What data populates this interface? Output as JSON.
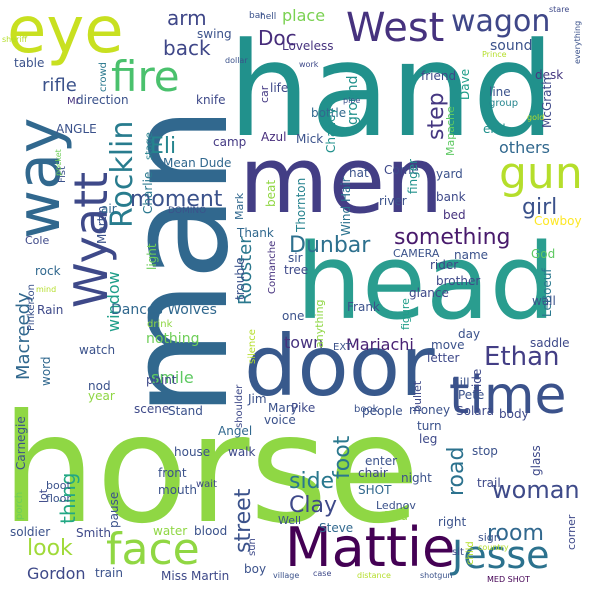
{
  "words": [
    {
      "text": "horse",
      "color": "#8fd744"
    },
    {
      "text": "man",
      "color": "#31688e"
    },
    {
      "text": "hand",
      "color": "#21918c"
    },
    {
      "text": "head",
      "color": "#2a9d8f"
    },
    {
      "text": "men",
      "color": "#433e85"
    },
    {
      "text": "door",
      "color": "#38598c"
    },
    {
      "text": "way",
      "color": "#31688e"
    },
    {
      "text": "eye",
      "color": "#c8e020"
    },
    {
      "text": "Mattie",
      "color": "#440154"
    },
    {
      "text": "time",
      "color": "#3b528b"
    },
    {
      "text": "Wyatt",
      "color": "#3e4989"
    },
    {
      "text": "West",
      "color": "#46327e"
    },
    {
      "text": "gun",
      "color": "#b5de2b"
    },
    {
      "text": "face",
      "color": "#90d743"
    },
    {
      "text": "fire",
      "color": "#4ac16d"
    },
    {
      "text": "Jesse",
      "color": "#2c728e"
    },
    {
      "text": "Rocklin",
      "color": "#287c8e"
    },
    {
      "text": "wagon",
      "color": "#3f4788"
    },
    {
      "text": "Ethan",
      "color": "#433e85"
    },
    {
      "text": "woman",
      "color": "#3e4a89"
    },
    {
      "text": "Dunbar",
      "color": "#2d708e"
    },
    {
      "text": "moment",
      "color": "#3b528b"
    },
    {
      "text": "something",
      "color": "#481a6c"
    },
    {
      "text": "road",
      "color": "#2c728e"
    },
    {
      "text": "room",
      "color": "#31688e"
    },
    {
      "text": "street",
      "color": "#3b528b"
    },
    {
      "text": "Eli",
      "color": "#25858e"
    },
    {
      "text": "side",
      "color": "#2a788e"
    },
    {
      "text": "Clay",
      "color": "#3e4989"
    },
    {
      "text": "girl",
      "color": "#3b528b"
    },
    {
      "text": "foot",
      "color": "#2a788e"
    },
    {
      "text": "step",
      "color": "#453781"
    },
    {
      "text": "look",
      "color": "#a0da39"
    },
    {
      "text": "back",
      "color": "#3f4788"
    },
    {
      "text": "Doc",
      "color": "#472d7b"
    },
    {
      "text": "arm",
      "color": "#3f4788"
    },
    {
      "text": "thing",
      "color": "#22a884"
    },
    {
      "text": "Rooster",
      "color": "#2a788e"
    },
    {
      "text": "window",
      "color": "#1f9e89"
    },
    {
      "text": "rifle",
      "color": "#3b528b"
    },
    {
      "text": "Macreedy",
      "color": "#31688e"
    },
    {
      "text": "Mariachi",
      "color": "#482173"
    },
    {
      "text": "Gordon",
      "color": "#3e4989"
    },
    {
      "text": "town",
      "color": "#46327e"
    },
    {
      "text": "others",
      "color": "#31688e"
    },
    {
      "text": "place",
      "color": "#7ad151"
    },
    {
      "text": "smile",
      "color": "#5ec962"
    },
    {
      "text": "sound",
      "color": "#3b528b"
    },
    {
      "text": "ground",
      "color": "#21918c"
    },
    {
      "text": "Dances Wolves",
      "color": "#31688e"
    },
    {
      "text": "nothing",
      "color": "#6ece58"
    },
    {
      "text": "Cowboy",
      "color": "#fde725"
    },
    {
      "text": "SHOT",
      "color": "#31688e"
    },
    {
      "text": "swing",
      "color": "#3b528b"
    },
    {
      "text": "table",
      "color": "#3b528b"
    },
    {
      "text": "Loveless",
      "color": "#46327e"
    },
    {
      "text": "friend",
      "color": "#3e4989"
    },
    {
      "text": "desk",
      "color": "#453781"
    },
    {
      "text": "crowd",
      "color": "#2a788e"
    },
    {
      "text": "direction",
      "color": "#3b528b"
    },
    {
      "text": "knife",
      "color": "#3e4989"
    },
    {
      "text": "life",
      "color": "#3e4989"
    },
    {
      "text": "bottle",
      "color": "#31688e"
    },
    {
      "text": "Dave",
      "color": "#1f9e89"
    },
    {
      "text": "line",
      "color": "#3b528b"
    },
    {
      "text": "group",
      "color": "#25858e"
    },
    {
      "text": "McGrath",
      "color": "#3e4989"
    },
    {
      "text": "Mapache",
      "color": "#5ec962"
    },
    {
      "text": "end",
      "color": "#21918c"
    },
    {
      "text": "Azul",
      "color": "#472d7b"
    },
    {
      "text": "Mick",
      "color": "#3b528b"
    },
    {
      "text": "camp",
      "color": "#443983"
    },
    {
      "text": "Mean Dude",
      "color": "#31688e"
    },
    {
      "text": "Chaney",
      "color": "#21918c"
    },
    {
      "text": "car",
      "color": "#443983"
    },
    {
      "text": "stage",
      "color": "#26828e"
    },
    {
      "text": "ANGLE",
      "color": "#3b528b"
    },
    {
      "text": "Fist",
      "color": "#3b528b"
    },
    {
      "text": "Mr",
      "color": "#46327e"
    },
    {
      "text": "Charlie",
      "color": "#2a788e"
    },
    {
      "text": "hat",
      "color": "#3b528b"
    },
    {
      "text": "Wind Hair",
      "color": "#2c728e"
    },
    {
      "text": "Come",
      "color": "#3e4989"
    },
    {
      "text": "finger",
      "color": "#21918c"
    },
    {
      "text": "yard",
      "color": "#3b528b"
    },
    {
      "text": "bank",
      "color": "#3e4989"
    },
    {
      "text": "bed",
      "color": "#46327e"
    },
    {
      "text": "river",
      "color": "#3b528b"
    },
    {
      "text": "Thornton",
      "color": "#26828e"
    },
    {
      "text": "beat",
      "color": "#90d743"
    },
    {
      "text": "Mark",
      "color": "#31688e"
    },
    {
      "text": "Martin",
      "color": "#3b528b"
    },
    {
      "text": "air",
      "color": "#31688e"
    },
    {
      "text": "DOMINO",
      "color": "#3b528b"
    },
    {
      "text": "Cole",
      "color": "#3e4989"
    },
    {
      "text": "Thank",
      "color": "#31688e"
    },
    {
      "text": "light",
      "color": "#6ece58"
    },
    {
      "text": "trouble",
      "color": "#3b528b"
    },
    {
      "text": "Comanche",
      "color": "#46327e"
    },
    {
      "text": "CAMERA",
      "color": "#3b528b"
    },
    {
      "text": "rider",
      "color": "#3e4989"
    },
    {
      "text": "name",
      "color": "#3b528b"
    },
    {
      "text": "sir",
      "color": "#3b528b"
    },
    {
      "text": "tree",
      "color": "#3e4989"
    },
    {
      "text": "God",
      "color": "#5ec962"
    },
    {
      "text": "LeBoeuf",
      "color": "#2a788e"
    },
    {
      "text": "brother",
      "color": "#3e4989"
    },
    {
      "text": "wall",
      "color": "#3b528b"
    },
    {
      "text": "glance",
      "color": "#3e4989"
    },
    {
      "text": "Frank",
      "color": "#3b528b"
    },
    {
      "text": "figure",
      "color": "#1f9e89"
    },
    {
      "text": "one",
      "color": "#3b528b"
    },
    {
      "text": "anything",
      "color": "#8fd744"
    },
    {
      "text": "day",
      "color": "#3b528b"
    },
    {
      "text": "saddle",
      "color": "#3e4989"
    },
    {
      "text": "rock",
      "color": "#31688e"
    },
    {
      "text": "drink",
      "color": "#8fd744"
    },
    {
      "text": "Pinkerton",
      "color": "#3b528b"
    },
    {
      "text": "Rain",
      "color": "#3e4989"
    },
    {
      "text": "watch",
      "color": "#3b528b"
    },
    {
      "text": "silence",
      "color": "#b5de2b"
    },
    {
      "text": "EXT",
      "color": "#3b528b"
    },
    {
      "text": "move",
      "color": "#3b528b"
    },
    {
      "text": "letter",
      "color": "#3e4989"
    },
    {
      "text": "hill",
      "color": "#3b528b"
    },
    {
      "text": "bullet",
      "color": "#3e4989"
    },
    {
      "text": "ride",
      "color": "#3e4989"
    },
    {
      "text": "Pete",
      "color": "#3b528b"
    },
    {
      "text": "word",
      "color": "#31688e"
    },
    {
      "text": "nod",
      "color": "#3b528b"
    },
    {
      "text": "point",
      "color": "#3e4989"
    },
    {
      "text": "year",
      "color": "#8fd744"
    },
    {
      "text": "Jim",
      "color": "#3b528b"
    },
    {
      "text": "Carnegie",
      "color": "#3b528b"
    },
    {
      "text": "scene",
      "color": "#3e4989"
    },
    {
      "text": "Stand",
      "color": "#3b528b"
    },
    {
      "text": "Mary",
      "color": "#3b528b"
    },
    {
      "text": "Pike",
      "color": "#3e4989"
    },
    {
      "text": "people",
      "color": "#3b528b"
    },
    {
      "text": "money",
      "color": "#3b528b"
    },
    {
      "text": "Solara",
      "color": "#3e4989"
    },
    {
      "text": "book",
      "color": "#3b528b"
    },
    {
      "text": "body",
      "color": "#3e4989"
    },
    {
      "text": "voice",
      "color": "#3b528b"
    },
    {
      "text": "Angel",
      "color": "#31688e"
    },
    {
      "text": "shoulder",
      "color": "#3e4989"
    },
    {
      "text": "turn",
      "color": "#3b528b"
    },
    {
      "text": "leg",
      "color": "#3e4989"
    },
    {
      "text": "house",
      "color": "#3b528b"
    },
    {
      "text": "walk",
      "color": "#3e4989"
    },
    {
      "text": "enter",
      "color": "#3b528b"
    },
    {
      "text": "chair",
      "color": "#3e4989"
    },
    {
      "text": "night",
      "color": "#3b528b"
    },
    {
      "text": "glass",
      "color": "#3e4989"
    },
    {
      "text": "stop",
      "color": "#3b528b"
    },
    {
      "text": "front",
      "color": "#3b528b"
    },
    {
      "text": "trail",
      "color": "#3e4989"
    },
    {
      "text": "porch",
      "color": "#6ece58"
    },
    {
      "text": "boot",
      "color": "#3b528b"
    },
    {
      "text": "lot",
      "color": "#3e4989"
    },
    {
      "text": "floor",
      "color": "#3b528b"
    },
    {
      "text": "mouth",
      "color": "#3b528b"
    },
    {
      "text": "wait",
      "color": "#3e4989"
    },
    {
      "text": "pause",
      "color": "#3b528b"
    },
    {
      "text": "Lednov",
      "color": "#3b528b"
    },
    {
      "text": "Bird",
      "color": "#8fd744"
    },
    {
      "text": "soldier",
      "color": "#3b528b"
    },
    {
      "text": "Smith",
      "color": "#3e4989"
    },
    {
      "text": "water",
      "color": "#8fd744"
    },
    {
      "text": "blood",
      "color": "#3b528b"
    },
    {
      "text": "sun",
      "color": "#3e4989"
    },
    {
      "text": "Well",
      "color": "#3b528b"
    },
    {
      "text": "Steve",
      "color": "#31688e"
    },
    {
      "text": "right",
      "color": "#3b528b"
    },
    {
      "text": "sit",
      "color": "#3e4989"
    },
    {
      "text": "child",
      "color": "#b5de2b"
    },
    {
      "text": "sign",
      "color": "#3b528b"
    },
    {
      "text": "corner",
      "color": "#3e4989"
    },
    {
      "text": "country",
      "color": "#b5de2b"
    },
    {
      "text": "boy",
      "color": "#3b528b"
    },
    {
      "text": "Miss Martin",
      "color": "#3e4989"
    },
    {
      "text": "train",
      "color": "#3b528b"
    },
    {
      "text": "village",
      "color": "#3b528b"
    },
    {
      "text": "case",
      "color": "#3e4989"
    },
    {
      "text": "distance",
      "color": "#b5de2b"
    },
    {
      "text": "shotgun",
      "color": "#3b528b"
    },
    {
      "text": "MED SHOT",
      "color": "#440154"
    },
    {
      "text": "pocket",
      "color": "#6ece58"
    },
    {
      "text": "sheriff",
      "color": "#b5de2b"
    },
    {
      "text": "bar",
      "color": "#3b528b"
    },
    {
      "text": "hell",
      "color": "#3b528b"
    },
    {
      "text": "work",
      "color": "#3e4989"
    },
    {
      "text": "dollar",
      "color": "#3b528b"
    },
    {
      "text": "pipe",
      "color": "#3b528b"
    },
    {
      "text": "gold",
      "color": "#b5de2b"
    },
    {
      "text": "Prince",
      "color": "#b5de2b"
    },
    {
      "text": "stare",
      "color": "#3e4989"
    },
    {
      "text": "everything",
      "color": "#3b528b"
    },
    {
      "text": "mind",
      "color": "#b5de2b"
    }
  ]
}
